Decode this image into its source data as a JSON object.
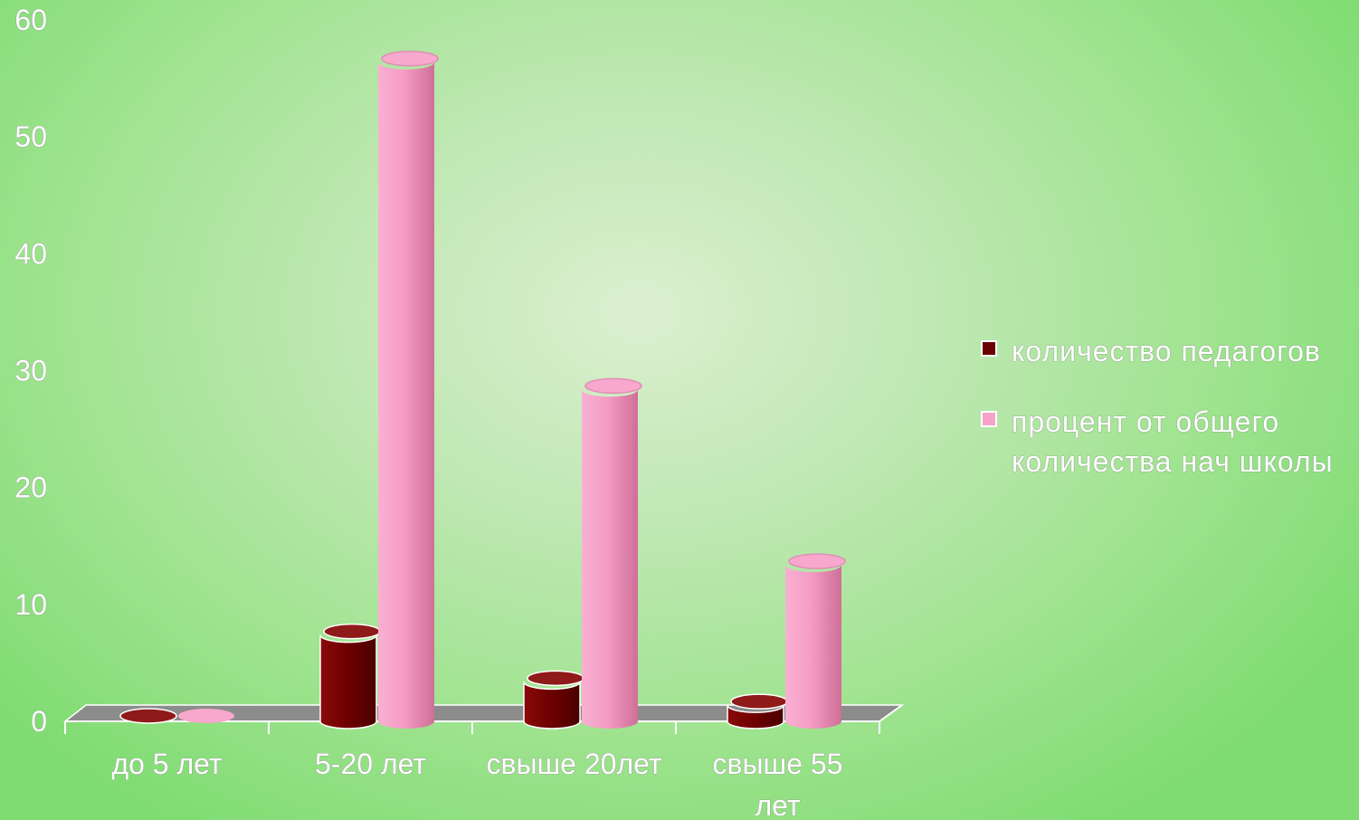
{
  "chart_data": {
    "type": "bar",
    "title": "",
    "xlabel": "",
    "ylabel": "",
    "ylim": [
      0,
      60
    ],
    "yticks": [
      0,
      10,
      20,
      30,
      40,
      50,
      60
    ],
    "categories": [
      "до 5 лет",
      "5-20 лет",
      "свыше 20лет",
      "свыше 55 лет"
    ],
    "series": [
      {
        "name": "количество педагогов",
        "color": "#6b0000",
        "values": [
          0,
          8,
          4,
          2
        ]
      },
      {
        "name": "процент от общего количества нач школы",
        "color": "#f7a2c8",
        "values": [
          0,
          57,
          29,
          14
        ]
      }
    ],
    "grid": false,
    "legend_position": "right",
    "style": "3d-cylinder"
  }
}
